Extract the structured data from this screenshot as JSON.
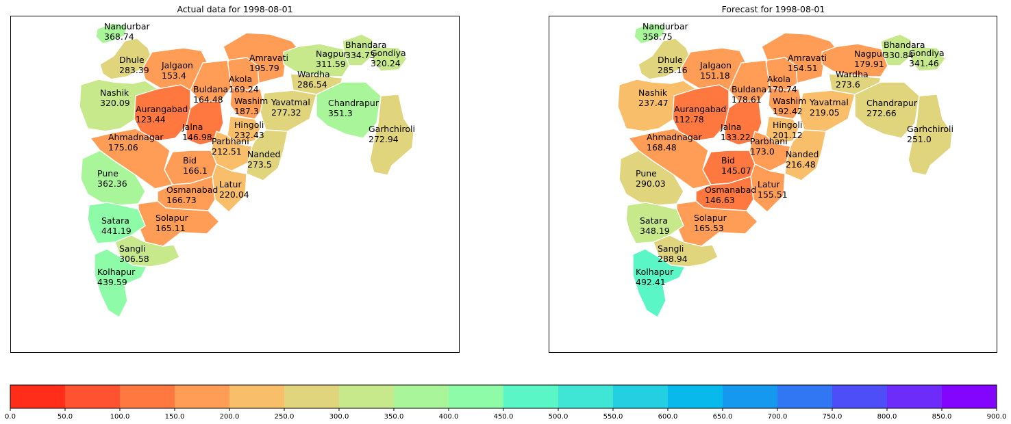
{
  "maps": [
    {
      "title": "Actual data for 1998-08-01",
      "districts": [
        {
          "name": "Nandurbar",
          "value": "368.74"
        },
        {
          "name": "Dhule",
          "value": "283.39"
        },
        {
          "name": "Jalgaon",
          "value": "153.4"
        },
        {
          "name": "Amravati",
          "value": "195.79"
        },
        {
          "name": "Nagpur",
          "value": "311.59"
        },
        {
          "name": "Bhandara",
          "value": "334.73"
        },
        {
          "name": "Gondiya",
          "value": "320.24"
        },
        {
          "name": "Wardha",
          "value": "286.54"
        },
        {
          "name": "Akola",
          "value": "169.24"
        },
        {
          "name": "Buldana",
          "value": "164.48"
        },
        {
          "name": "Nashik",
          "value": "320.09"
        },
        {
          "name": "Washim",
          "value": "187.3"
        },
        {
          "name": "Yavatmal",
          "value": "277.32"
        },
        {
          "name": "Chandrapur",
          "value": "351.3"
        },
        {
          "name": "Aurangabad",
          "value": "123.44"
        },
        {
          "name": "Jalna",
          "value": "146.98"
        },
        {
          "name": "Hingoli",
          "value": "232.43"
        },
        {
          "name": "Parbhani",
          "value": "212.51"
        },
        {
          "name": "Garhchiroli",
          "value": "272.94"
        },
        {
          "name": "Ahmadnagar",
          "value": "175.06"
        },
        {
          "name": "Nanded",
          "value": "273.5"
        },
        {
          "name": "Bid",
          "value": "166.1"
        },
        {
          "name": "Pune",
          "value": "362.36"
        },
        {
          "name": "Latur",
          "value": "220.04"
        },
        {
          "name": "Osmanabad",
          "value": "166.73"
        },
        {
          "name": "Solapur",
          "value": "165.11"
        },
        {
          "name": "Satara",
          "value": "441.19"
        },
        {
          "name": "Sangli",
          "value": "306.58"
        },
        {
          "name": "Kolhapur",
          "value": "439.59"
        }
      ]
    },
    {
      "title": "Forecast for 1998-08-01",
      "districts": [
        {
          "name": "Nandurbar",
          "value": "358.75"
        },
        {
          "name": "Dhule",
          "value": "285.16"
        },
        {
          "name": "Jalgaon",
          "value": "151.18"
        },
        {
          "name": "Amravati",
          "value": "154.51"
        },
        {
          "name": "Nagpur",
          "value": "179.91"
        },
        {
          "name": "Bhandara",
          "value": "330.84"
        },
        {
          "name": "Gondiya",
          "value": "341.46"
        },
        {
          "name": "Wardha",
          "value": "273.6"
        },
        {
          "name": "Akola",
          "value": "170.74"
        },
        {
          "name": "Buldana",
          "value": "178.61"
        },
        {
          "name": "Nashik",
          "value": "237.47"
        },
        {
          "name": "Washim",
          "value": "192.42"
        },
        {
          "name": "Yavatmal",
          "value": "219.05"
        },
        {
          "name": "Chandrapur",
          "value": "272.66"
        },
        {
          "name": "Aurangabad",
          "value": "112.78"
        },
        {
          "name": "Jalna",
          "value": "133.22"
        },
        {
          "name": "Hingoli",
          "value": "201.12"
        },
        {
          "name": "Parbhani",
          "value": "173.0"
        },
        {
          "name": "Garhchiroli",
          "value": "251.0"
        },
        {
          "name": "Ahmadnagar",
          "value": "168.48"
        },
        {
          "name": "Nanded",
          "value": "216.48"
        },
        {
          "name": "Bid",
          "value": "145.07"
        },
        {
          "name": "Pune",
          "value": "290.03"
        },
        {
          "name": "Latur",
          "value": "155.51"
        },
        {
          "name": "Osmanabad",
          "value": "146.63"
        },
        {
          "name": "Solapur",
          "value": "165.53"
        },
        {
          "name": "Satara",
          "value": "348.19"
        },
        {
          "name": "Sangli",
          "value": "288.94"
        },
        {
          "name": "Kolhapur",
          "value": "492.41"
        }
      ]
    }
  ],
  "colorbar": {
    "ticks": [
      "0.0",
      "50.0",
      "100.0",
      "150.0",
      "200.0",
      "250.0",
      "300.0",
      "350.0",
      "400.0",
      "450.0",
      "500.0",
      "550.0",
      "600.0",
      "650.0",
      "700.0",
      "750.0",
      "800.0",
      "850.0",
      "900.0"
    ],
    "colors": [
      "#ff2d1a",
      "#ff5230",
      "#ff7840",
      "#ff9c55",
      "#f9be69",
      "#e0d47c",
      "#c7e98b",
      "#a9f69a",
      "#8dfba8",
      "#5af6c6",
      "#3fe6d6",
      "#22d0e2",
      "#08b9ec",
      "#1599ee",
      "#3176f2",
      "#4e4ef8",
      "#6e2cfb",
      "#8305fe"
    ]
  }
}
